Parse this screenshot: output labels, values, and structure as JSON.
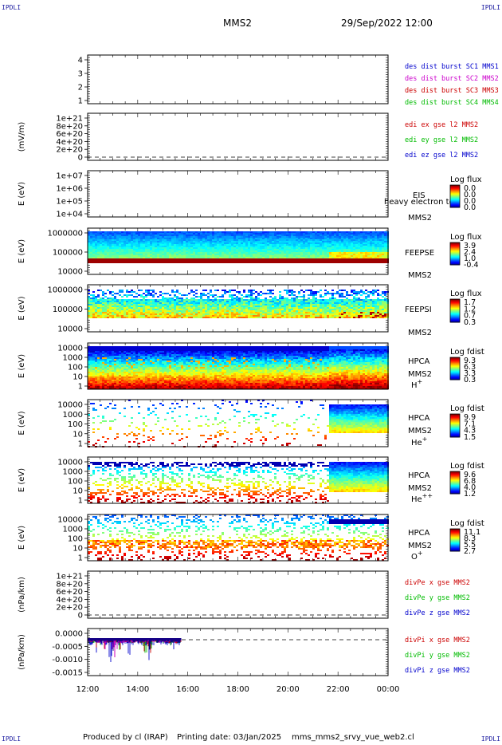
{
  "corners": {
    "top_left": "IPDLI",
    "top_right": "IPDLI",
    "bottom_left": "IPDLI",
    "bottom_right": "IPDLI"
  },
  "header": {
    "mission": "MMS2",
    "datetime": "29/Sep/2022 12:00"
  },
  "footer": {
    "produced_by": "Produced by cl (IRAP)",
    "printing_date": "Printing date: 03/Jan/2025",
    "filename": "mms_mms2_srvy_vue_web2.cl"
  },
  "xaxis": {
    "ticks": [
      "12:00",
      "14:00",
      "16:00",
      "18:00",
      "20:00",
      "22:00",
      "00:00"
    ]
  },
  "colors": {
    "blue": "#0000cc",
    "magenta": "#cc00cc",
    "red": "#cc0000",
    "green": "#00bb00",
    "dark_blue": "#000080"
  },
  "chart_data": [
    {
      "type": "line",
      "id": "p1",
      "ylabel": "",
      "y_ticks": [
        "4",
        "3",
        "2",
        "1"
      ],
      "series": [
        {
          "name": "des dist burst SC1 MMS1",
          "color": "#0000cc"
        },
        {
          "name": "des dist burst SC2 MMS2",
          "color": "#cc00cc"
        },
        {
          "name": "des dist burst SC3 MMS3",
          "color": "#cc0000"
        },
        {
          "name": "des dist burst SC4 MMS4",
          "color": "#00bb00"
        }
      ]
    },
    {
      "type": "line",
      "id": "p2",
      "ylabel": "(mV/m)",
      "y_ticks": [
        "1e+21",
        "8e+20",
        "6e+20",
        "4e+20",
        "2e+20",
        "0"
      ],
      "series": [
        {
          "name": "edi ex gse l2 MMS2",
          "color": "#cc0000"
        },
        {
          "name": "edi ey gse l2 MMS2",
          "color": "#00bb00"
        },
        {
          "name": "edi ez gse l2 MMS2",
          "color": "#0000cc"
        }
      ]
    },
    {
      "type": "heatmap",
      "id": "p3",
      "ylabel": "E (eV)",
      "y_ticks": [
        "1e+07",
        "1e+06",
        "1e+05",
        "1e+04"
      ],
      "instrument": "EIS",
      "spacecraft": "MMS2",
      "overlay": "heavy electron to",
      "cbar_title": "Log flux",
      "cbar_ticks": [
        "0.0",
        "0.0",
        "0.0",
        "0.0"
      ]
    },
    {
      "type": "heatmap",
      "id": "p4",
      "ylabel": "E (eV)",
      "y_ticks": [
        "1000000",
        "100000",
        "10000"
      ],
      "instrument": "FEEPSE",
      "spacecraft": "MMS2",
      "cbar_title": "Log flux",
      "cbar_ticks": [
        "3.9",
        "2.4",
        "1.0",
        "-0.4"
      ]
    },
    {
      "type": "heatmap",
      "id": "p5",
      "ylabel": "E (eV)",
      "y_ticks": [
        "1000000",
        "100000",
        "10000"
      ],
      "instrument": "FEEPSI",
      "spacecraft": "MMS2",
      "cbar_title": "Log flux",
      "cbar_ticks": [
        "1.7",
        "1.2",
        "0.7",
        "0.3"
      ]
    },
    {
      "type": "heatmap",
      "id": "p6",
      "ylabel": "E (eV)",
      "y_ticks": [
        "10000",
        "1000",
        "100",
        "10",
        "1"
      ],
      "instrument": "HPCA",
      "spacecraft": "MMS2",
      "species": "H",
      "species_charge": "+",
      "cbar_title": "Log fdist",
      "cbar_ticks": [
        "9.3",
        "6.3",
        "3.3",
        "0.3"
      ]
    },
    {
      "type": "heatmap",
      "id": "p7",
      "ylabel": "E (eV)",
      "y_ticks": [
        "10000",
        "1000",
        "100",
        "10",
        "1"
      ],
      "instrument": "HPCA",
      "spacecraft": "MMS2",
      "species": "He",
      "species_charge": "+",
      "cbar_title": "Log fdist",
      "cbar_ticks": [
        "9.9",
        "7.1",
        "4.3",
        "1.5"
      ]
    },
    {
      "type": "heatmap",
      "id": "p8",
      "ylabel": "E (eV)",
      "y_ticks": [
        "10000",
        "1000",
        "100",
        "10",
        "1"
      ],
      "instrument": "HPCA",
      "spacecraft": "MMS2",
      "species": "He",
      "species_charge": "++",
      "cbar_title": "Log fdist",
      "cbar_ticks": [
        "9.6",
        "6.8",
        "4.0",
        "1.2"
      ]
    },
    {
      "type": "heatmap",
      "id": "p9",
      "ylabel": "E (eV)",
      "y_ticks": [
        "10000",
        "1000",
        "100",
        "10",
        "1"
      ],
      "instrument": "HPCA",
      "spacecraft": "MMS2",
      "species": "O",
      "species_charge": "+",
      "cbar_title": "Log fdist",
      "cbar_ticks": [
        "11.1",
        "8.3",
        "5.5",
        "2.7"
      ]
    },
    {
      "type": "line",
      "id": "p10",
      "ylabel": "(nPa/km)",
      "y_ticks": [
        "1e+21",
        "8e+20",
        "6e+20",
        "4e+20",
        "2e+20",
        "0"
      ],
      "series": [
        {
          "name": "divPe x gse MMS2",
          "color": "#cc0000"
        },
        {
          "name": "divPe y gse MMS2",
          "color": "#00bb00"
        },
        {
          "name": "divPe z gse MMS2",
          "color": "#0000cc"
        }
      ]
    },
    {
      "type": "line",
      "id": "p11",
      "ylabel": "(nPa/km)",
      "y_ticks": [
        "0.0000",
        "-0.0005",
        "-0.0010",
        "-0.0015"
      ],
      "ylim": [
        -0.0015,
        0.0002
      ],
      "x_data_end": "15:50",
      "series": [
        {
          "name": "divPi x gse MMS2",
          "color": "#cc0000"
        },
        {
          "name": "divPi y gse MMS2",
          "color": "#00bb00"
        },
        {
          "name": "divPi z gse MMS2",
          "color": "#0000cc"
        }
      ]
    }
  ]
}
